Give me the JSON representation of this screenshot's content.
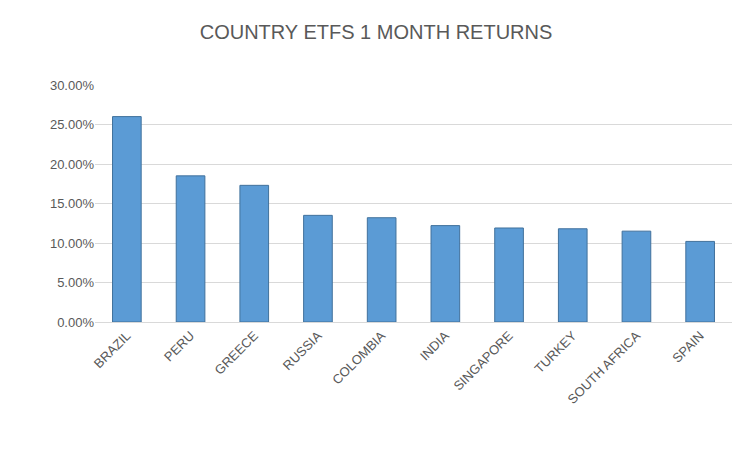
{
  "chart_data": {
    "type": "bar",
    "title": "COUNTRY ETFS 1 MONTH RETURNS",
    "categories": [
      "BRAZIL",
      "PERU",
      "GREECE",
      "RUSSIA",
      "COLOMBIA",
      "INDIA",
      "SINGAPORE",
      "TURKEY",
      "SOUTH AFRICA",
      "SPAIN"
    ],
    "values": [
      26.0,
      18.5,
      17.3,
      13.5,
      13.2,
      12.2,
      11.9,
      11.8,
      11.5,
      10.2
    ],
    "color": "#5b9bd5",
    "ylim": [
      0,
      30
    ],
    "yticks": [
      {
        "value": 0,
        "label": "0.00%"
      },
      {
        "value": 5,
        "label": "5.00%"
      },
      {
        "value": 10,
        "label": "10.00%"
      },
      {
        "value": 15,
        "label": "15.00%"
      },
      {
        "value": 20,
        "label": "20.00%"
      },
      {
        "value": 25,
        "label": "25.00%"
      },
      {
        "value": 30,
        "label": "30.00%"
      }
    ],
    "grid": true
  }
}
